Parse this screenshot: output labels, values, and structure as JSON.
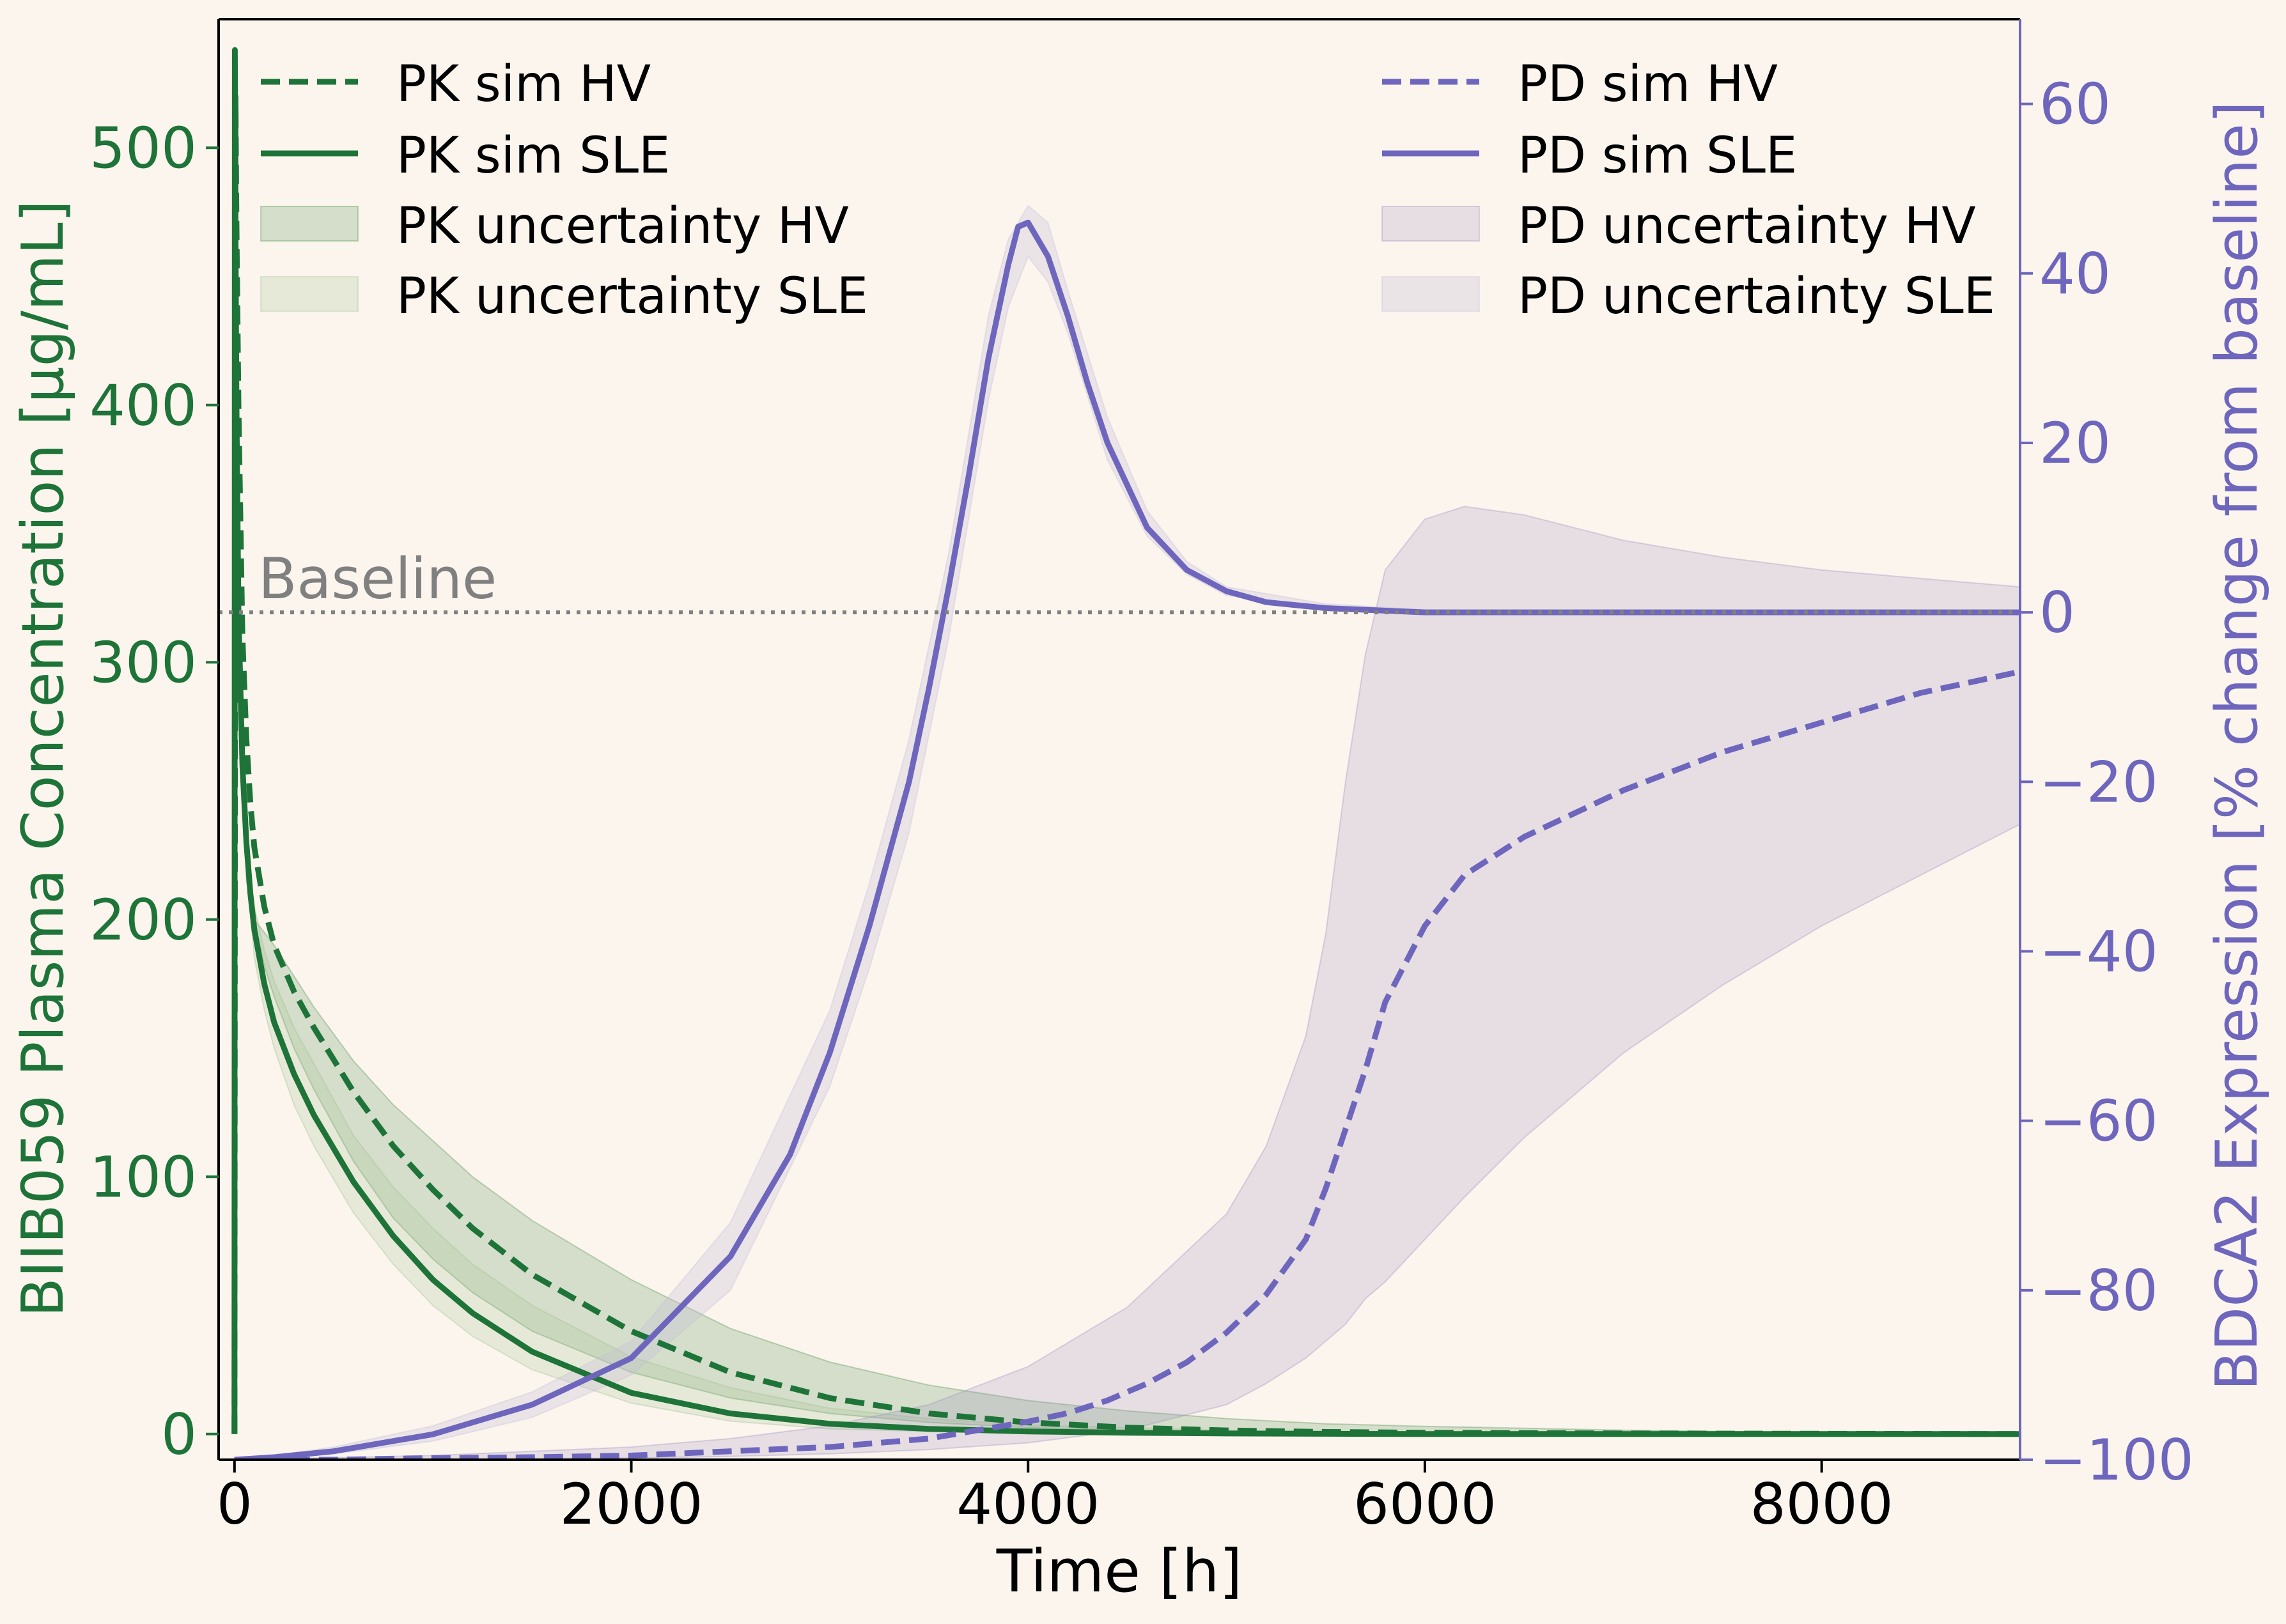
{
  "chart_data": {
    "type": "line",
    "xlabel": "Time [h]",
    "ylabel_left": "BIIB059 Plasma Concentration [µg/mL]",
    "ylabel_right": "BDCA2 Expression [% change from baseline]",
    "xlim": [
      -80,
      9000
    ],
    "ylim_left": [
      -10,
      550
    ],
    "ylim_right": [
      -100,
      70
    ],
    "x_ticks": [
      0,
      2000,
      4000,
      6000,
      8000
    ],
    "y_ticks_left": [
      0,
      100,
      200,
      300,
      400,
      500
    ],
    "y_ticks_right": [
      -100,
      -80,
      -60,
      -40,
      -20,
      0,
      20,
      40,
      60
    ],
    "grid": false,
    "baseline": {
      "label": "Baseline",
      "y_right": 0
    },
    "colors": {
      "pk": "#1e7438",
      "pd": "#6e66bd",
      "pk_band_hv": "#4f8f4f",
      "pk_band_sle": "#9fbf8f",
      "pd_band_hv": "#9a8fc0",
      "pd_band_sle": "#c7bcd6",
      "baseline": "#808080",
      "background": "#fbf5ee"
    },
    "legend_pk": {
      "placement": "upper-left",
      "entries": [
        "PK sim HV",
        "PK sim SLE",
        "PK uncertainty HV",
        "PK uncertainty SLE"
      ]
    },
    "legend_pd": {
      "placement": "upper-right",
      "entries": [
        "PD sim HV",
        "PD sim SLE",
        "PD uncertainty HV",
        "PD uncertainty SLE"
      ]
    },
    "series": [
      {
        "name": "PK sim HV",
        "axis": "left",
        "style": "dashed",
        "x": [
          0,
          5,
          10,
          20,
          40,
          60,
          80,
          100,
          150,
          200,
          300,
          400,
          600,
          800,
          1000,
          1200,
          1500,
          2000,
          2500,
          3000,
          3500,
          4000,
          4500,
          5000,
          5500,
          6000,
          7000,
          8000,
          9000
        ],
        "y": [
          0,
          520,
          470,
          400,
          310,
          270,
          245,
          228,
          205,
          190,
          172,
          158,
          133,
          112,
          95,
          80,
          62,
          40,
          24,
          14,
          8,
          4.5,
          2.5,
          1.4,
          0.8,
          0.5,
          0.2,
          0.1,
          0
        ]
      },
      {
        "name": "PK sim SLE",
        "axis": "left",
        "style": "solid",
        "x": [
          0,
          2,
          5,
          10,
          20,
          40,
          60,
          80,
          100,
          150,
          200,
          300,
          400,
          600,
          800,
          1000,
          1200,
          1500,
          2000,
          2500,
          3000,
          3500,
          4000,
          4500,
          5000,
          6000,
          7000,
          8000,
          9000
        ],
        "y": [
          0,
          538,
          470,
          400,
          320,
          260,
          230,
          210,
          196,
          175,
          160,
          140,
          124,
          98,
          77,
          60,
          47,
          32,
          16,
          8,
          4,
          2,
          1,
          0.5,
          0.2,
          0,
          0,
          0,
          0
        ]
      },
      {
        "name": "PK uncertainty HV",
        "axis": "left",
        "type": "band",
        "x": [
          60,
          100,
          150,
          200,
          300,
          400,
          600,
          800,
          1000,
          1200,
          1500,
          2000,
          2500,
          3000,
          3500,
          4000,
          4500,
          5000,
          5500,
          6000,
          7000,
          8000,
          9000
        ],
        "y_low": [
          235,
          200,
          182,
          170,
          150,
          134,
          106,
          84,
          68,
          55,
          40,
          24,
          14,
          8,
          4.5,
          2.5,
          1.5,
          0.8,
          0.5,
          0.3,
          0,
          0,
          0
        ],
        "y_high": [
          215,
          200,
          195,
          190,
          178,
          166,
          145,
          128,
          114,
          100,
          83,
          60,
          41,
          28,
          19,
          13,
          9,
          6,
          4,
          3,
          1.5,
          0.5,
          0
        ]
      },
      {
        "name": "PK uncertainty SLE",
        "axis": "left",
        "type": "band",
        "x": [
          60,
          100,
          150,
          200,
          300,
          400,
          600,
          800,
          1000,
          1200,
          1500,
          2000,
          2500,
          3000,
          3500,
          4000,
          5000,
          6000,
          7000,
          8000,
          9000
        ],
        "y_low": [
          220,
          185,
          165,
          150,
          128,
          112,
          86,
          66,
          50,
          38,
          25,
          12,
          5,
          2,
          1,
          0.5,
          0,
          0,
          0,
          0,
          0
        ],
        "y_high": [
          230,
          205,
          188,
          176,
          158,
          144,
          116,
          96,
          80,
          66,
          50,
          30,
          18,
          10,
          6,
          3.5,
          1.5,
          0.5,
          0,
          0,
          0
        ]
      },
      {
        "name": "PD sim HV",
        "axis": "right",
        "style": "dashed",
        "x": [
          0,
          500,
          1000,
          1500,
          2000,
          2500,
          3000,
          3500,
          4000,
          4200,
          4400,
          4600,
          4800,
          5000,
          5200,
          5400,
          5500,
          5600,
          5700,
          5800,
          6000,
          6200,
          6500,
          7000,
          7500,
          8000,
          8500,
          9000
        ],
        "y": [
          -100,
          -100,
          -99.8,
          -99.7,
          -99.5,
          -99,
          -98.5,
          -97.5,
          -95.5,
          -94.5,
          -93,
          -91,
          -88.5,
          -85,
          -80.5,
          -74,
          -68,
          -61,
          -54,
          -46,
          -37,
          -31,
          -26.5,
          -21,
          -16.5,
          -13,
          -9.5,
          -7
        ]
      },
      {
        "name": "PD sim SLE",
        "axis": "right",
        "style": "solid",
        "x": [
          0,
          200,
          500,
          1000,
          1500,
          2000,
          2500,
          2800,
          3000,
          3200,
          3400,
          3500,
          3600,
          3700,
          3800,
          3900,
          3950,
          4000,
          4100,
          4200,
          4300,
          4400,
          4600,
          4800,
          5000,
          5200,
          5500,
          6000,
          7000,
          8000,
          9000
        ],
        "y": [
          -100,
          -99.7,
          -99,
          -97,
          -93.5,
          -88,
          -76,
          -64,
          -52,
          -37,
          -20,
          -9,
          3,
          16,
          30,
          41,
          45.5,
          46,
          42,
          35,
          27,
          20,
          10,
          5,
          2.5,
          1.2,
          0.5,
          0,
          0,
          0,
          0
        ]
      },
      {
        "name": "PD uncertainty HV",
        "axis": "right",
        "type": "band",
        "x": [
          0,
          1000,
          2000,
          2500,
          3000,
          3500,
          4000,
          4500,
          5000,
          5200,
          5400,
          5500,
          5600,
          5700,
          5800,
          6000,
          6200,
          6500,
          7000,
          7500,
          8000,
          8500,
          9000
        ],
        "y_low": [
          -100,
          -100,
          -99.8,
          -99.6,
          -99.3,
          -98.8,
          -98,
          -96.5,
          -93.5,
          -91,
          -88,
          -86,
          -84,
          -81,
          -79,
          -74,
          -69,
          -62,
          -52,
          -44,
          -37,
          -31,
          -25
        ],
        "y_high": [
          -100,
          -99.5,
          -98.5,
          -97.5,
          -96,
          -93.5,
          -89,
          -82,
          -71,
          -63,
          -50,
          -38,
          -20,
          -5,
          5,
          11,
          12.5,
          11.5,
          8.5,
          6.5,
          5,
          4,
          3
        ]
      },
      {
        "name": "PD uncertainty SLE",
        "axis": "right",
        "type": "band",
        "x": [
          0,
          200,
          500,
          1000,
          1500,
          2000,
          2500,
          3000,
          3200,
          3400,
          3600,
          3800,
          3900,
          4000,
          4100,
          4200,
          4400,
          4600,
          4800,
          5000,
          5500,
          6000,
          7000,
          9000
        ],
        "y_low": [
          -100,
          -99.8,
          -99.3,
          -97.8,
          -95,
          -90,
          -80,
          -56,
          -42,
          -26,
          -3,
          25,
          36,
          42,
          39,
          33,
          18,
          9,
          4.5,
          2,
          0.5,
          0,
          0,
          0
        ],
        "y_high": [
          -100,
          -99.5,
          -98.5,
          -96,
          -92,
          -86,
          -72,
          -47,
          -32,
          -15,
          7,
          35,
          44,
          48,
          46,
          38,
          23,
          12,
          6,
          3,
          1,
          0.3,
          0,
          0
        ]
      }
    ]
  }
}
